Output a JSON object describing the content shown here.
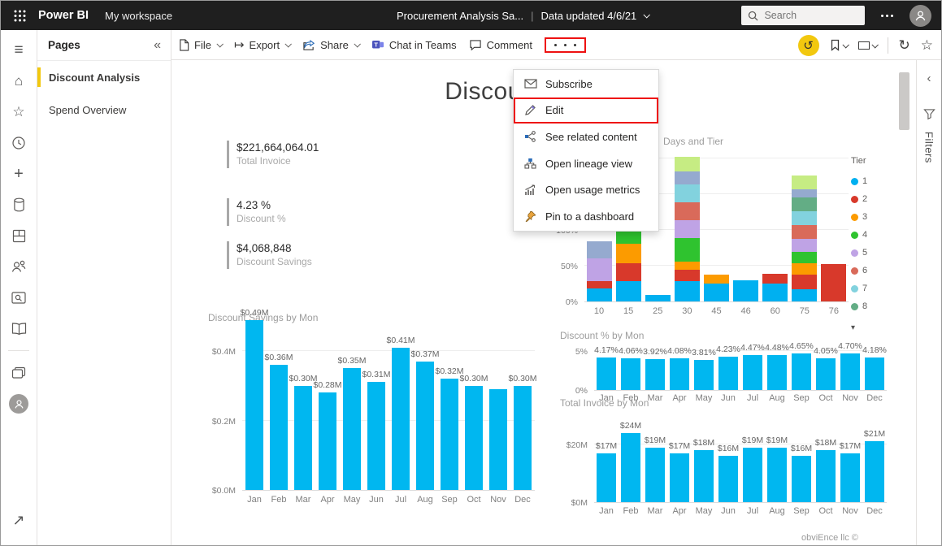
{
  "topbar": {
    "app": "Power BI",
    "workspace": "My workspace",
    "report_title": "Procurement Analysis Sa...",
    "divider": "|",
    "data_updated": "Data updated 4/6/21",
    "search_placeholder": "Search"
  },
  "pages_panel": {
    "title": "Pages",
    "collapse_glyph": "«",
    "items": [
      {
        "label": "Discount Analysis",
        "selected": true
      },
      {
        "label": "Spend Overview",
        "selected": false
      }
    ]
  },
  "toolbar": {
    "file_label": "File",
    "export_label": "Export",
    "share_label": "Share",
    "teams_label": "Chat in Teams",
    "comment_label": "Comment",
    "highlight_color": "#ee1111"
  },
  "icons": {
    "export_glyph": "↦",
    "reset_glyph": "↺",
    "refresh_glyph": "↻",
    "star_glyph": "☆",
    "hamburger_glyph": "≡",
    "home_glyph": "⌂",
    "plus_glyph": "+",
    "external_glyph": "↗",
    "filters_chevron_glyph": "‹",
    "legend_overflow_glyph": "▾"
  },
  "menu": {
    "items": [
      {
        "label": "Subscribe",
        "icon": "mail-icon",
        "highlighted": false
      },
      {
        "label": "Edit",
        "icon": "pencil-icon",
        "highlighted": true
      },
      {
        "label": "See related content",
        "icon": "related-content-icon",
        "highlighted": false
      },
      {
        "label": "Open lineage view",
        "icon": "lineage-icon",
        "highlighted": false
      },
      {
        "label": "Open usage metrics",
        "icon": "usage-metrics-icon",
        "highlighted": false
      },
      {
        "label": "Pin to a dashboard",
        "icon": "pin-icon",
        "highlighted": false
      }
    ]
  },
  "report": {
    "title": "Discount Analysis",
    "kpis": [
      {
        "value": "$221,664,064.01",
        "label": "Total Invoice"
      },
      {
        "value": "4.23 %",
        "label": "Discount %"
      },
      {
        "value": "$4,068,848",
        "label": "Discount Savings"
      }
    ],
    "footer": "obviEnce llc ©"
  },
  "filters_panel": {
    "label": "Filters"
  },
  "chart_data": [
    {
      "type": "bar",
      "stacked": true,
      "title": "Days and Tier",
      "categories": [
        "10",
        "15",
        "25",
        "30",
        "45",
        "46",
        "60",
        "75",
        "76"
      ],
      "ylabel": "%",
      "ylim": [
        0,
        200
      ],
      "yticks": [
        "0%",
        "50%",
        "100%",
        "150%",
        "200%"
      ],
      "legend_title": "Tier",
      "legend_position": "right",
      "legend_entries": [
        "1",
        "2",
        "3",
        "4",
        "5",
        "6",
        "7",
        "8"
      ],
      "tier_colors": {
        "1": "#00b0f0",
        "2": "#d8392b",
        "3": "#fc9b00",
        "4": "#2fc32f",
        "5": "#bfa3e5",
        "6": "#d96a5a",
        "7": "#82d2de",
        "8": "#63ad85",
        "9": "#95aacf",
        "10": "#c6ec83"
      },
      "stacks": [
        {
          "category": "10",
          "segments": [
            {
              "tier": "1",
              "value": 18
            },
            {
              "tier": "2",
              "value": 10
            },
            {
              "tier": "5",
              "value": 32
            },
            {
              "tier": "9",
              "value": 24
            }
          ]
        },
        {
          "category": "15",
          "segments": [
            {
              "tier": "1",
              "value": 28
            },
            {
              "tier": "2",
              "value": 25
            },
            {
              "tier": "3",
              "value": 28
            },
            {
              "tier": "4",
              "value": 30
            },
            {
              "tier": "5",
              "value": 38
            },
            {
              "tier": "7",
              "value": 20
            }
          ]
        },
        {
          "category": "25",
          "segments": [
            {
              "tier": "1",
              "value": 9
            }
          ]
        },
        {
          "category": "30",
          "segments": [
            {
              "tier": "1",
              "value": 28
            },
            {
              "tier": "2",
              "value": 16
            },
            {
              "tier": "3",
              "value": 12
            },
            {
              "tier": "4",
              "value": 33
            },
            {
              "tier": "5",
              "value": 25
            },
            {
              "tier": "6",
              "value": 25
            },
            {
              "tier": "7",
              "value": 25
            },
            {
              "tier": "9",
              "value": 18
            },
            {
              "tier": "10",
              "value": 20
            }
          ]
        },
        {
          "category": "45",
          "segments": [
            {
              "tier": "1",
              "value": 25
            },
            {
              "tier": "3",
              "value": 13
            }
          ]
        },
        {
          "category": "46",
          "segments": [
            {
              "tier": "1",
              "value": 30
            }
          ]
        },
        {
          "category": "60",
          "segments": [
            {
              "tier": "1",
              "value": 25
            },
            {
              "tier": "2",
              "value": 14
            }
          ]
        },
        {
          "category": "75",
          "segments": [
            {
              "tier": "1",
              "value": 17
            },
            {
              "tier": "2",
              "value": 20
            },
            {
              "tier": "3",
              "value": 17
            },
            {
              "tier": "4",
              "value": 15
            },
            {
              "tier": "5",
              "value": 19
            },
            {
              "tier": "6",
              "value": 19
            },
            {
              "tier": "7",
              "value": 19
            },
            {
              "tier": "8",
              "value": 20
            },
            {
              "tier": "9",
              "value": 11
            },
            {
              "tier": "10",
              "value": 19
            }
          ]
        },
        {
          "category": "76",
          "segments": [
            {
              "tier": "2",
              "value": 52
            }
          ]
        }
      ]
    },
    {
      "type": "bar",
      "title": "Discount Savings by Mon",
      "categories": [
        "Jan",
        "Feb",
        "Mar",
        "Apr",
        "May",
        "Jun",
        "Jul",
        "Aug",
        "Sep",
        "Oct",
        "Nov",
        "Dec"
      ],
      "values": [
        0.49,
        0.36,
        0.3,
        0.28,
        0.35,
        0.31,
        0.41,
        0.37,
        0.32,
        0.3,
        0.29,
        0.3
      ],
      "data_labels": [
        "$0.49M",
        "$0.36M",
        "$0.30M",
        "$0.28M",
        "$0.35M",
        "$0.31M",
        "$0.41M",
        "$0.37M",
        "$0.32M",
        "$0.30M",
        "",
        "$0.30M"
      ],
      "yticks": [
        "$0.0M",
        "$0.2M",
        "$0.4M"
      ],
      "ylim": [
        0,
        0.5
      ],
      "bar_color": "#00b7f0"
    },
    {
      "type": "bar",
      "title": "Discount % by Mon",
      "categories": [
        "Jan",
        "Feb",
        "Mar",
        "Apr",
        "May",
        "Jun",
        "Jul",
        "Aug",
        "Sep",
        "Oct",
        "Nov",
        "Dec"
      ],
      "values": [
        4.17,
        4.06,
        3.92,
        4.08,
        3.81,
        4.23,
        4.47,
        4.48,
        4.65,
        4.05,
        4.7,
        4.18
      ],
      "data_labels": [
        "4.17%",
        "4.06%",
        "3.92%",
        "4.08%",
        "3.81%",
        "4.23%",
        "4.47%",
        "4.48%",
        "4.65%",
        "4.05%",
        "4.70%",
        "4.18%"
      ],
      "yticks": [
        "0%",
        "5%"
      ],
      "ylim": [
        0,
        5.5
      ],
      "bar_color": "#00b7f0"
    },
    {
      "type": "bar",
      "title": "Total Invoice by Mon",
      "categories": [
        "Jan",
        "Feb",
        "Mar",
        "Apr",
        "May",
        "Jun",
        "Jul",
        "Aug",
        "Sep",
        "Oct",
        "Nov",
        "Dec"
      ],
      "values": [
        17,
        24,
        19,
        17,
        18,
        16,
        19,
        19,
        16,
        18,
        17,
        21
      ],
      "data_labels": [
        "$17M",
        "$24M",
        "$19M",
        "$17M",
        "$18M",
        "$16M",
        "$19M",
        "$19M",
        "$16M",
        "$18M",
        "$17M",
        "$21M"
      ],
      "yticks": [
        "$0M",
        "$20M"
      ],
      "ylim": [
        0,
        26
      ],
      "bar_color": "#00b7f0"
    }
  ]
}
